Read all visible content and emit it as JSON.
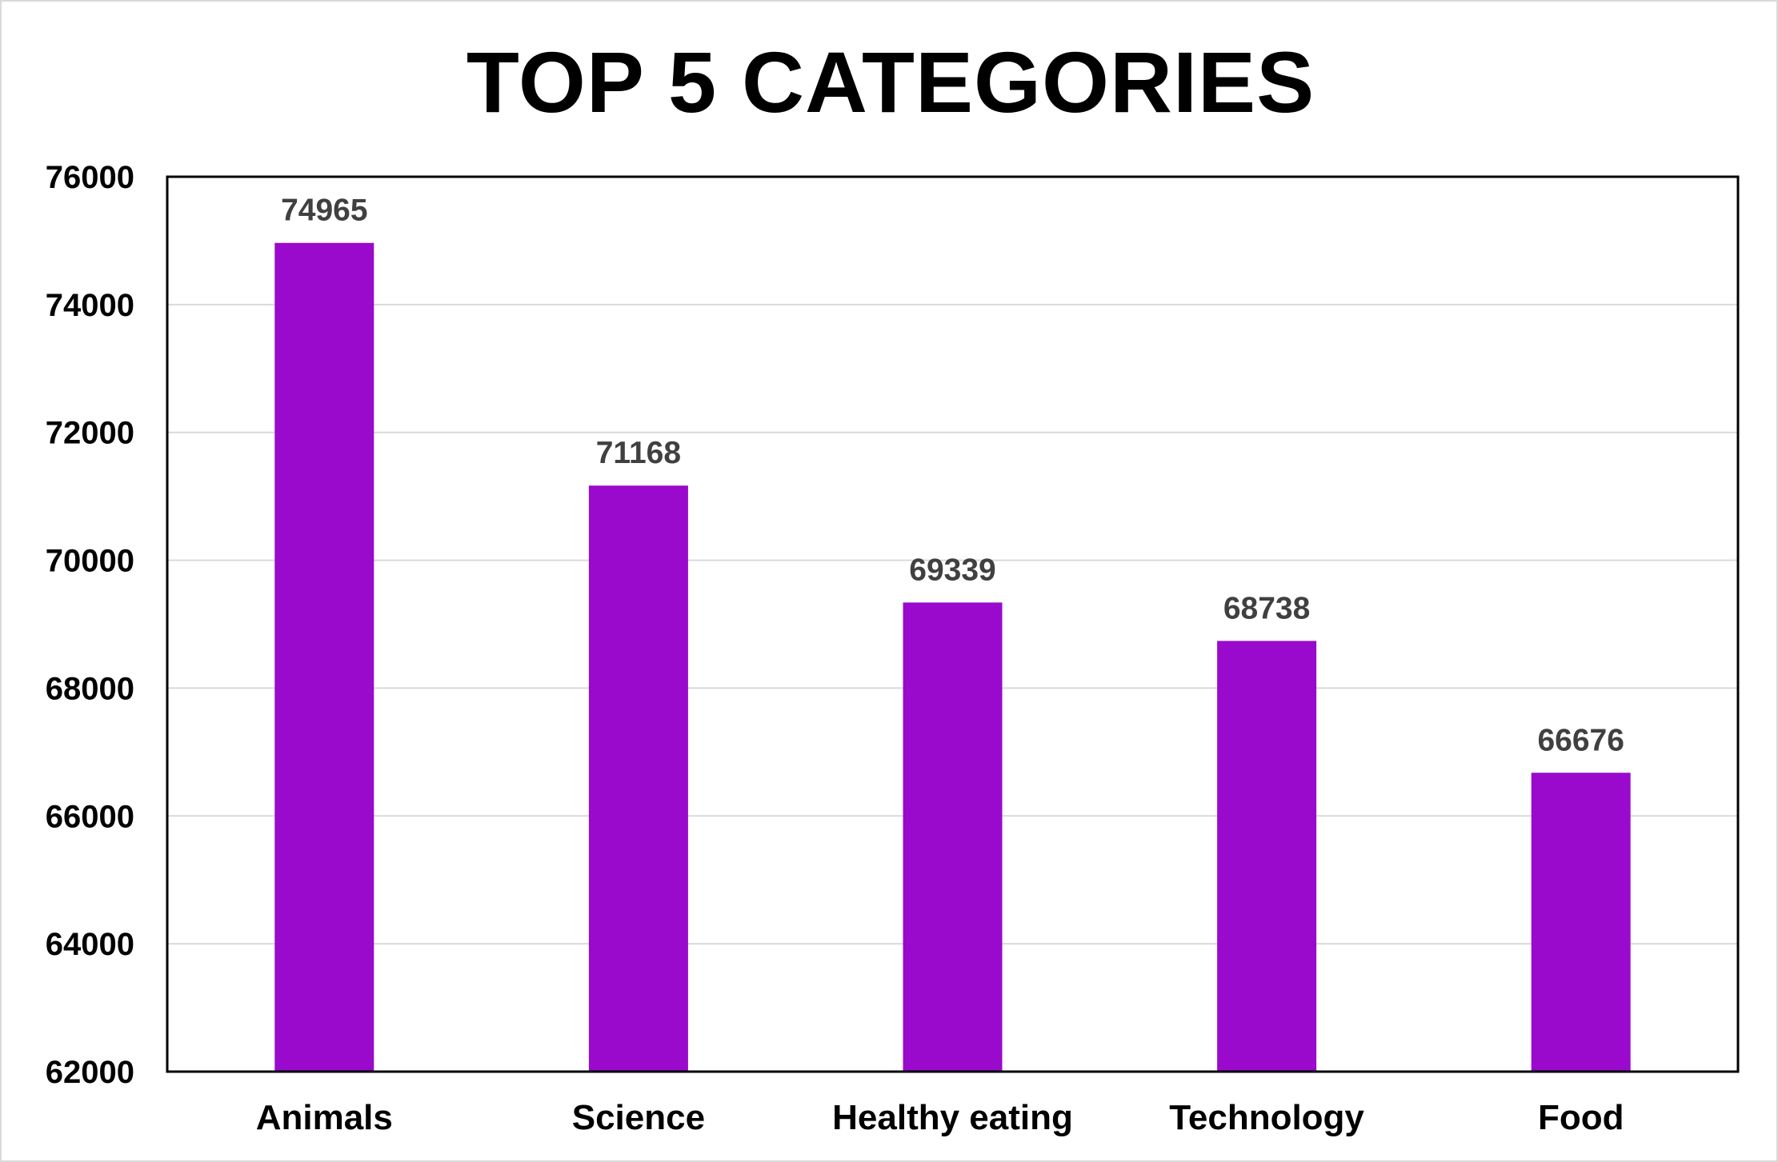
{
  "chart_data": {
    "type": "bar",
    "title": "TOP 5 CATEGORIES",
    "categories": [
      "Animals",
      "Science",
      "Healthy eating",
      "Technology",
      "Food"
    ],
    "values": [
      74965,
      71168,
      69339,
      68738,
      66676
    ],
    "data_labels": [
      "74965",
      "71168",
      "69339",
      "68738",
      "66676"
    ],
    "ylim": [
      62000,
      76000
    ],
    "yticks": [
      62000,
      64000,
      66000,
      68000,
      70000,
      72000,
      74000,
      76000
    ],
    "ytick_labels": [
      "62000",
      "64000",
      "66000",
      "68000",
      "70000",
      "72000",
      "74000",
      "76000"
    ],
    "grid": true,
    "bar_color": "#990acc",
    "grid_color": "#d9d9d9",
    "axis_color": "#000000"
  }
}
